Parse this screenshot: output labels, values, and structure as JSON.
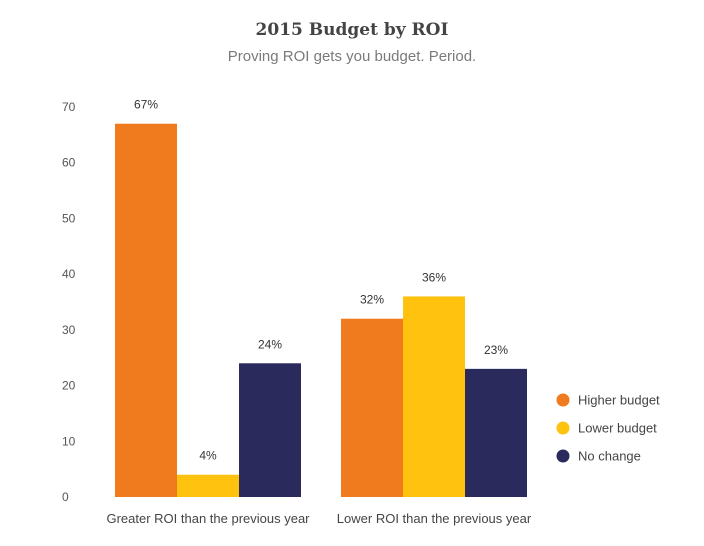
{
  "chart_data": {
    "type": "bar",
    "title": "2015 Budget by ROI",
    "subtitle": "Proving ROI gets you budget. Period.",
    "categories": [
      "Greater ROI than the previous year",
      "Lower ROI than the previous year"
    ],
    "series": [
      {
        "name": "Higher budget",
        "color": "#F07A1E",
        "values": [
          67,
          32
        ],
        "labels": [
          "67%",
          "32%"
        ]
      },
      {
        "name": "Lower budget",
        "color": "#FFC20E",
        "values": [
          4,
          36
        ],
        "labels": [
          "4%",
          "36%"
        ]
      },
      {
        "name": "No change",
        "color": "#2B2A5C",
        "values": [
          24,
          23
        ],
        "labels": [
          "24%",
          "23%"
        ]
      }
    ],
    "ylim": [
      0,
      70
    ],
    "yticks": [
      0,
      10,
      20,
      30,
      40,
      50,
      60,
      70
    ],
    "grid": false,
    "legend_position": "right"
  }
}
